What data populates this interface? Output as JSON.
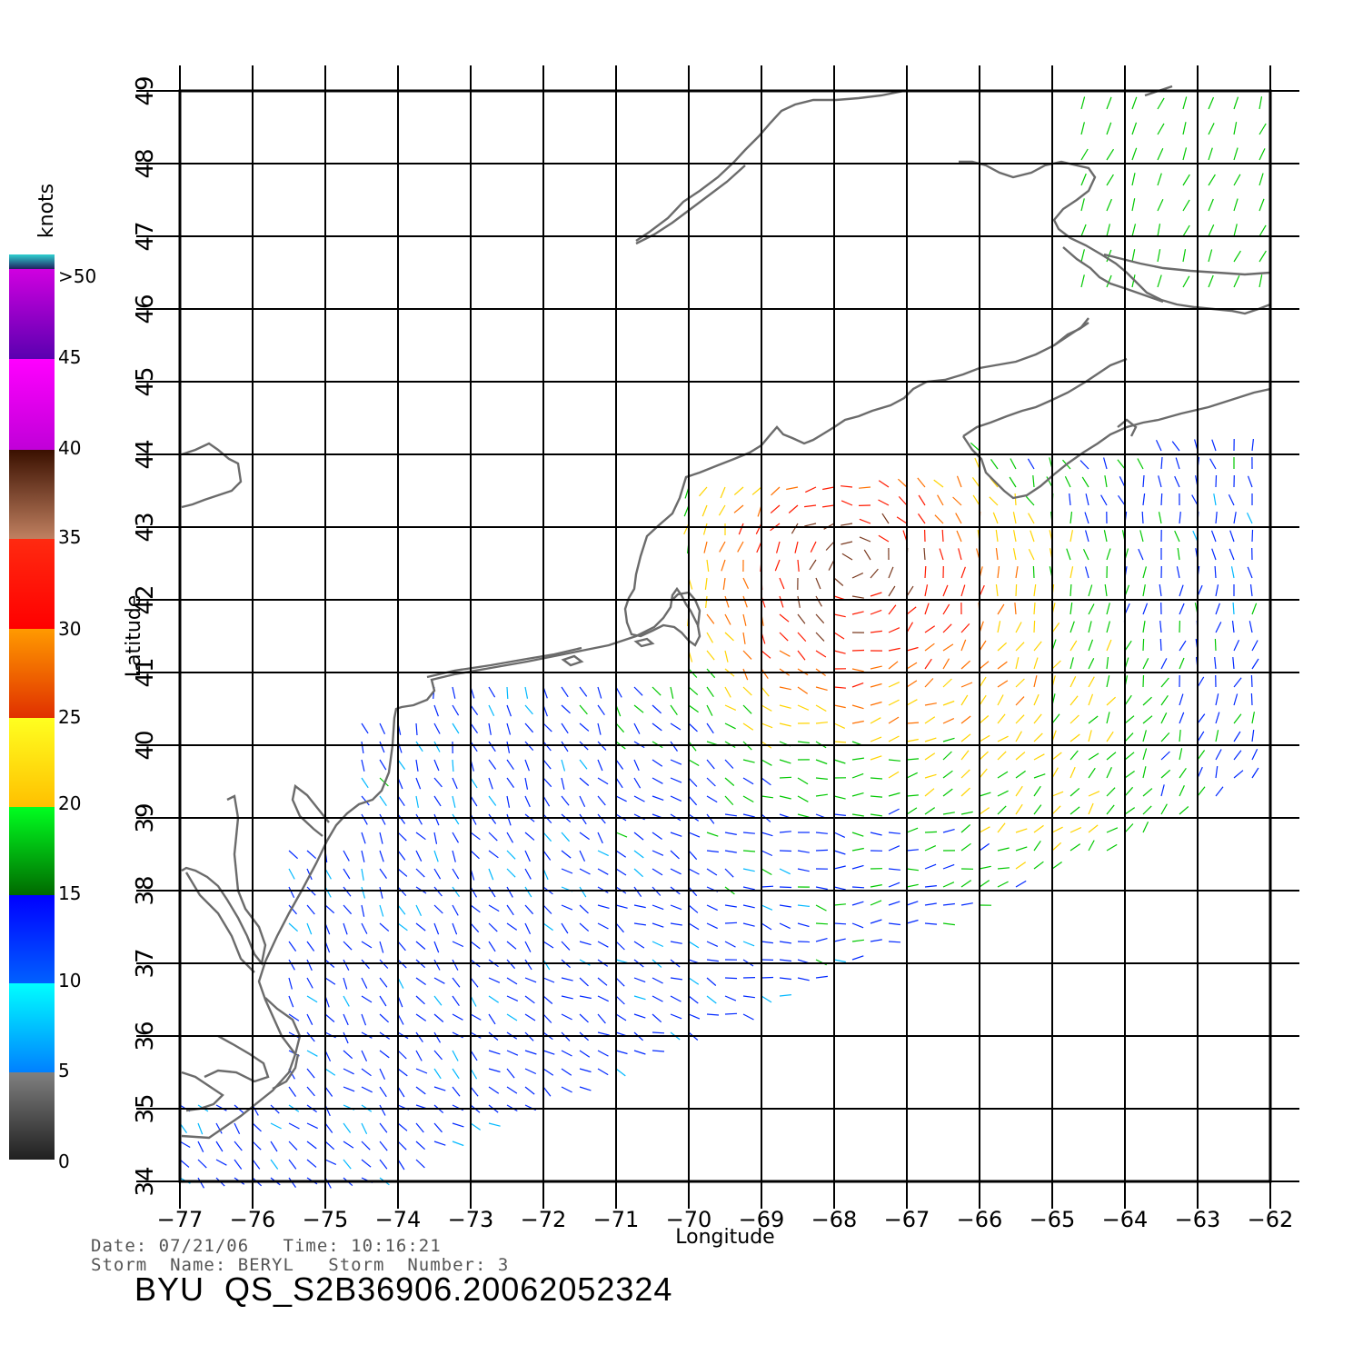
{
  "map": {
    "lon_range": [
      -77,
      -62
    ],
    "lat_range": [
      34,
      49
    ],
    "lon_ticks": [
      "−77",
      "−76",
      "−75",
      "−74",
      "−73",
      "−72",
      "−71",
      "−70",
      "−69",
      "−68",
      "−67",
      "−66",
      "−65",
      "−64",
      "−63",
      "−62"
    ],
    "lat_ticks": [
      "34",
      "35",
      "36",
      "37",
      "38",
      "39",
      "40",
      "41",
      "42",
      "43",
      "44",
      "45",
      "46",
      "47",
      "48",
      "49"
    ],
    "xlabel": "Longitude",
    "ylabel": "Latitude",
    "grid": true,
    "content": "QuikSCAT wind vectors over the NW Atlantic (Tropical Storm Beryl)"
  },
  "legend": {
    "unit": "knots",
    "labels": [
      ">50",
      "45",
      "40",
      "35",
      "30",
      "25",
      "20",
      "15",
      "10",
      "5",
      "0"
    ],
    "colors": {
      "0_5": "#444444",
      "5_10": "#00b8ff",
      "10_15": "#0028ff",
      "15_20": "#00c800",
      "20_25": "#ffd400",
      "25_30": "#ff7000",
      "30_35": "#ff1a00",
      "35_40": "#7a3a20",
      "40_45": "#d000e0",
      "45_50": "#7a00c8",
      "over_50": "#30d0d0"
    }
  },
  "footer": {
    "date_label": "Date:",
    "date": "07/21/06",
    "time_label": "Time:",
    "time": "10:16:21",
    "storm_name_label": "Storm  Name:",
    "storm_name": "BERYL",
    "storm_number_label": "Storm  Number:",
    "storm_number": "3",
    "product_id": "BYU  QS_S2B36906.20062052324"
  }
}
